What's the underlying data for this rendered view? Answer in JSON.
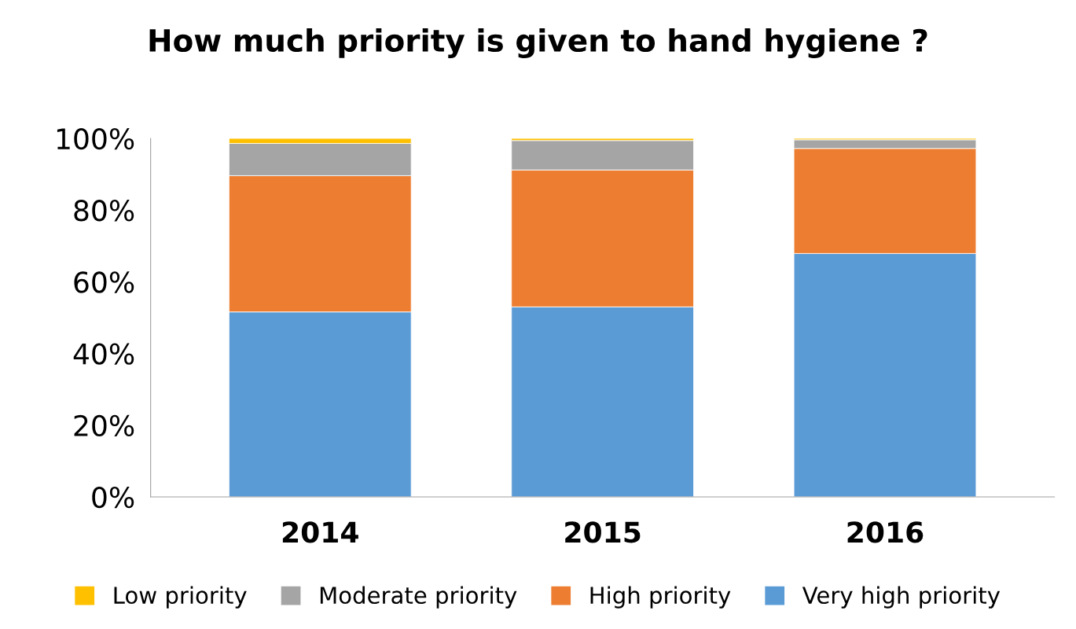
{
  "chart_data": {
    "type": "bar",
    "title": "How much priority is given to hand hygiene ?",
    "categories": [
      "2014",
      "2015",
      "2016"
    ],
    "stacked": true,
    "series": [
      {
        "name": "Very high priority",
        "color": "#5b9bd5",
        "values": [
          51.6,
          53.0,
          67.9
        ]
      },
      {
        "name": "High priority",
        "color": "#ed7d31",
        "values": [
          38.0,
          38.2,
          29.3
        ]
      },
      {
        "name": "Moderate priority",
        "color": "#a5a5a5",
        "values": [
          9.0,
          8.2,
          2.4
        ]
      },
      {
        "name": "Low priority",
        "color": "#ffc000",
        "values": [
          1.4,
          0.6,
          0.4
        ]
      }
    ],
    "ylim": [
      0,
      100
    ],
    "yticks": [
      {
        "value": 0,
        "label": "0%"
      },
      {
        "value": 20,
        "label": "20%"
      },
      {
        "value": 40,
        "label": "40%"
      },
      {
        "value": 60,
        "label": "60%"
      },
      {
        "value": 80,
        "label": "80%"
      },
      {
        "value": 100,
        "label": "100%"
      }
    ],
    "grid": false,
    "legend": "bottom"
  }
}
